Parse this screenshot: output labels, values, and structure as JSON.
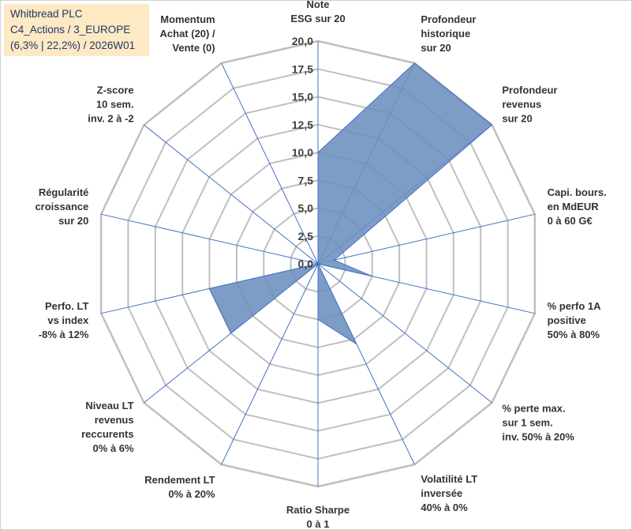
{
  "title_box": {
    "line1": "Whitbread PLC",
    "line2": "C4_Actions / 3_EUROPE",
    "line3": "(6,3% | 22,2%) / 2026W01"
  },
  "chart_data": {
    "type": "radar",
    "range": [
      0,
      20
    ],
    "tick_values": [
      0,
      2.5,
      5,
      7.5,
      10,
      12.5,
      15,
      17.5,
      20
    ],
    "tick_labels": [
      "0,0",
      "2,5",
      "5,0",
      "7,5",
      "10,0",
      "12,5",
      "15,0",
      "17,5",
      "20,0"
    ],
    "grid": true,
    "fill_color": "#6b8fbf",
    "line_color": "#4472c4",
    "grid_color": "#bfbfbf",
    "axes": [
      {
        "label": [
          "Note",
          "ESG sur 20"
        ],
        "value": 10
      },
      {
        "label": [
          "Profondeur",
          "historique",
          "sur 20"
        ],
        "value": 20
      },
      {
        "label": [
          "Profondeur",
          "revenus",
          "sur 20"
        ],
        "value": 20
      },
      {
        "label": [
          "Capi. bours.",
          "en MdEUR",
          "0 à 60 G€"
        ],
        "value": 1.5
      },
      {
        "label": [
          "% perfo 1A",
          "positive",
          "50% à 80%"
        ],
        "value": 5
      },
      {
        "label": [
          "% perte max.",
          "sur 1 sem.",
          "inv. 50% à 20%"
        ],
        "value": 0
      },
      {
        "label": [
          "Volatilité LT",
          "inversée",
          "40% à 0%"
        ],
        "value": 8
      },
      {
        "label": [
          "Ratio Sharpe",
          "0 à 1"
        ],
        "value": 5
      },
      {
        "label": [
          "Rendement LT",
          "0% à 20%"
        ],
        "value": 0
      },
      {
        "label": [
          "Niveau LT",
          "revenus",
          "reccurents",
          "0% à 6%"
        ],
        "value": 10
      },
      {
        "label": [
          "Perfo. LT",
          "vs index",
          "-8% à 12%"
        ],
        "value": 10
      },
      {
        "label": [
          "Régularité",
          "croissance",
          "sur 20"
        ],
        "value": 0
      },
      {
        "label": [
          "Z-score",
          "10 sem.",
          "inv. 2 à -2"
        ],
        "value": 0
      },
      {
        "label": [
          "Momentum",
          "Achat (20) /",
          "Vente (0)"
        ],
        "value": 0
      }
    ]
  }
}
